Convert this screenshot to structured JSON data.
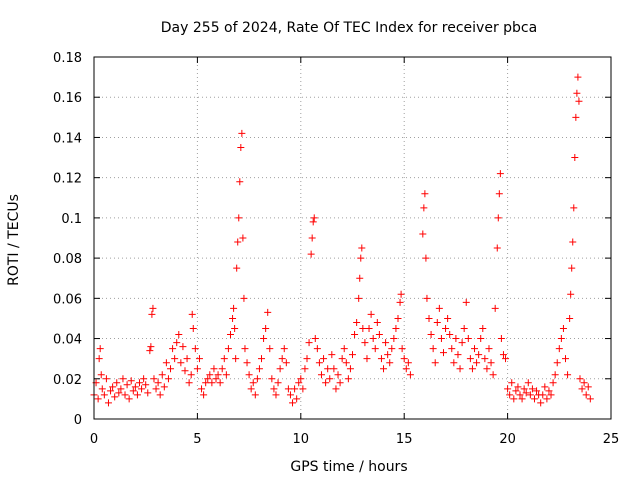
{
  "chart_data": {
    "type": "scatter",
    "title": "Day 255 of 2024, Rate Of TEC Index for receiver pbca",
    "xlabel": "GPS time / hours",
    "ylabel": "ROTI / TECUs",
    "xlim": [
      0,
      25
    ],
    "ylim": [
      0,
      0.18
    ],
    "xticks": [
      "0",
      "5",
      "10",
      "15",
      "20",
      "25"
    ],
    "yticks": [
      "0",
      "0.02",
      "0.04",
      "0.06",
      "0.08",
      "0.1",
      "0.12",
      "0.14",
      "0.16",
      "0.18"
    ],
    "grid": true,
    "marker": "+",
    "color": "#ff0000",
    "series": [
      {
        "points": [
          [
            0.0,
            0.012
          ],
          [
            0.1,
            0.018
          ],
          [
            0.2,
            0.01
          ],
          [
            0.25,
            0.03
          ],
          [
            0.3,
            0.035
          ],
          [
            0.35,
            0.022
          ],
          [
            0.4,
            0.015
          ],
          [
            0.5,
            0.012
          ],
          [
            0.6,
            0.02
          ],
          [
            0.7,
            0.008
          ],
          [
            0.8,
            0.014
          ],
          [
            0.9,
            0.016
          ],
          [
            1.0,
            0.011
          ],
          [
            1.1,
            0.018
          ],
          [
            1.2,
            0.013
          ],
          [
            1.3,
            0.015
          ],
          [
            1.4,
            0.02
          ],
          [
            1.5,
            0.012
          ],
          [
            1.6,
            0.017
          ],
          [
            1.7,
            0.01
          ],
          [
            1.8,
            0.019
          ],
          [
            1.9,
            0.014
          ],
          [
            2.0,
            0.016
          ],
          [
            2.1,
            0.012
          ],
          [
            2.2,
            0.018
          ],
          [
            2.3,
            0.015
          ],
          [
            2.4,
            0.02
          ],
          [
            2.5,
            0.017
          ],
          [
            2.6,
            0.013
          ],
          [
            2.7,
            0.034
          ],
          [
            2.75,
            0.036
          ],
          [
            2.8,
            0.052
          ],
          [
            2.85,
            0.055
          ],
          [
            2.9,
            0.02
          ],
          [
            3.0,
            0.015
          ],
          [
            3.1,
            0.018
          ],
          [
            3.2,
            0.012
          ],
          [
            3.3,
            0.022
          ],
          [
            3.4,
            0.016
          ],
          [
            3.5,
            0.028
          ],
          [
            3.6,
            0.02
          ],
          [
            3.7,
            0.025
          ],
          [
            3.8,
            0.035
          ],
          [
            3.9,
            0.03
          ],
          [
            4.0,
            0.038
          ],
          [
            4.1,
            0.042
          ],
          [
            4.2,
            0.028
          ],
          [
            4.3,
            0.036
          ],
          [
            4.4,
            0.024
          ],
          [
            4.5,
            0.03
          ],
          [
            4.6,
            0.018
          ],
          [
            4.7,
            0.022
          ],
          [
            4.75,
            0.052
          ],
          [
            4.8,
            0.045
          ],
          [
            4.9,
            0.035
          ],
          [
            5.0,
            0.025
          ],
          [
            5.1,
            0.03
          ],
          [
            5.2,
            0.015
          ],
          [
            5.3,
            0.012
          ],
          [
            5.4,
            0.018
          ],
          [
            5.5,
            0.02
          ],
          [
            5.6,
            0.022
          ],
          [
            5.7,
            0.018
          ],
          [
            5.8,
            0.025
          ],
          [
            5.9,
            0.02
          ],
          [
            6.0,
            0.022
          ],
          [
            6.1,
            0.018
          ],
          [
            6.2,
            0.025
          ],
          [
            6.3,
            0.03
          ],
          [
            6.4,
            0.022
          ],
          [
            6.5,
            0.035
          ],
          [
            6.6,
            0.042
          ],
          [
            6.7,
            0.05
          ],
          [
            6.75,
            0.055
          ],
          [
            6.8,
            0.045
          ],
          [
            6.85,
            0.03
          ],
          [
            6.9,
            0.075
          ],
          [
            6.95,
            0.088
          ],
          [
            7.0,
            0.1
          ],
          [
            7.05,
            0.118
          ],
          [
            7.1,
            0.135
          ],
          [
            7.15,
            0.142
          ],
          [
            7.2,
            0.09
          ],
          [
            7.25,
            0.06
          ],
          [
            7.3,
            0.035
          ],
          [
            7.4,
            0.028
          ],
          [
            7.5,
            0.022
          ],
          [
            7.6,
            0.015
          ],
          [
            7.7,
            0.018
          ],
          [
            7.8,
            0.012
          ],
          [
            7.9,
            0.02
          ],
          [
            8.0,
            0.025
          ],
          [
            8.1,
            0.03
          ],
          [
            8.2,
            0.04
          ],
          [
            8.3,
            0.045
          ],
          [
            8.4,
            0.053
          ],
          [
            8.5,
            0.035
          ],
          [
            8.6,
            0.02
          ],
          [
            8.7,
            0.015
          ],
          [
            8.8,
            0.012
          ],
          [
            8.9,
            0.018
          ],
          [
            9.0,
            0.025
          ],
          [
            9.1,
            0.03
          ],
          [
            9.2,
            0.035
          ],
          [
            9.3,
            0.028
          ],
          [
            9.4,
            0.015
          ],
          [
            9.5,
            0.012
          ],
          [
            9.6,
            0.008
          ],
          [
            9.7,
            0.015
          ],
          [
            9.8,
            0.01
          ],
          [
            9.9,
            0.018
          ],
          [
            10.0,
            0.02
          ],
          [
            10.1,
            0.015
          ],
          [
            10.2,
            0.025
          ],
          [
            10.3,
            0.03
          ],
          [
            10.4,
            0.038
          ],
          [
            10.5,
            0.082
          ],
          [
            10.55,
            0.09
          ],
          [
            10.6,
            0.098
          ],
          [
            10.65,
            0.1
          ],
          [
            10.7,
            0.04
          ],
          [
            10.8,
            0.035
          ],
          [
            10.9,
            0.028
          ],
          [
            11.0,
            0.022
          ],
          [
            11.1,
            0.03
          ],
          [
            11.2,
            0.018
          ],
          [
            11.3,
            0.025
          ],
          [
            11.4,
            0.02
          ],
          [
            11.5,
            0.032
          ],
          [
            11.6,
            0.025
          ],
          [
            11.7,
            0.015
          ],
          [
            11.8,
            0.022
          ],
          [
            11.9,
            0.018
          ],
          [
            12.0,
            0.03
          ],
          [
            12.1,
            0.035
          ],
          [
            12.2,
            0.028
          ],
          [
            12.3,
            0.02
          ],
          [
            12.4,
            0.025
          ],
          [
            12.5,
            0.032
          ],
          [
            12.6,
            0.042
          ],
          [
            12.7,
            0.048
          ],
          [
            12.8,
            0.06
          ],
          [
            12.85,
            0.07
          ],
          [
            12.9,
            0.08
          ],
          [
            12.95,
            0.085
          ],
          [
            13.0,
            0.045
          ],
          [
            13.1,
            0.038
          ],
          [
            13.2,
            0.03
          ],
          [
            13.3,
            0.045
          ],
          [
            13.4,
            0.052
          ],
          [
            13.5,
            0.04
          ],
          [
            13.6,
            0.035
          ],
          [
            13.7,
            0.048
          ],
          [
            13.8,
            0.042
          ],
          [
            13.9,
            0.03
          ],
          [
            14.0,
            0.025
          ],
          [
            14.1,
            0.038
          ],
          [
            14.2,
            0.032
          ],
          [
            14.3,
            0.028
          ],
          [
            14.4,
            0.035
          ],
          [
            14.5,
            0.04
          ],
          [
            14.6,
            0.045
          ],
          [
            14.7,
            0.05
          ],
          [
            14.8,
            0.058
          ],
          [
            14.85,
            0.062
          ],
          [
            14.9,
            0.035
          ],
          [
            15.0,
            0.03
          ],
          [
            15.1,
            0.025
          ],
          [
            15.2,
            0.028
          ],
          [
            15.3,
            0.022
          ],
          [
            15.9,
            0.092
          ],
          [
            15.95,
            0.105
          ],
          [
            16.0,
            0.112
          ],
          [
            16.05,
            0.08
          ],
          [
            16.1,
            0.06
          ],
          [
            16.2,
            0.05
          ],
          [
            16.3,
            0.042
          ],
          [
            16.4,
            0.035
          ],
          [
            16.5,
            0.028
          ],
          [
            16.6,
            0.048
          ],
          [
            16.7,
            0.055
          ],
          [
            16.8,
            0.04
          ],
          [
            16.9,
            0.033
          ],
          [
            17.0,
            0.045
          ],
          [
            17.1,
            0.05
          ],
          [
            17.2,
            0.042
          ],
          [
            17.3,
            0.035
          ],
          [
            17.4,
            0.028
          ],
          [
            17.5,
            0.04
          ],
          [
            17.6,
            0.032
          ],
          [
            17.7,
            0.025
          ],
          [
            17.8,
            0.038
          ],
          [
            17.9,
            0.045
          ],
          [
            18.0,
            0.058
          ],
          [
            18.1,
            0.04
          ],
          [
            18.2,
            0.03
          ],
          [
            18.3,
            0.025
          ],
          [
            18.4,
            0.035
          ],
          [
            18.5,
            0.028
          ],
          [
            18.6,
            0.032
          ],
          [
            18.7,
            0.04
          ],
          [
            18.8,
            0.045
          ],
          [
            18.9,
            0.03
          ],
          [
            19.0,
            0.025
          ],
          [
            19.1,
            0.035
          ],
          [
            19.2,
            0.028
          ],
          [
            19.3,
            0.022
          ],
          [
            19.4,
            0.055
          ],
          [
            19.5,
            0.085
          ],
          [
            19.55,
            0.1
          ],
          [
            19.6,
            0.112
          ],
          [
            19.65,
            0.122
          ],
          [
            19.7,
            0.04
          ],
          [
            19.8,
            0.032
          ],
          [
            19.9,
            0.03
          ],
          [
            20.0,
            0.015
          ],
          [
            20.1,
            0.012
          ],
          [
            20.2,
            0.018
          ],
          [
            20.3,
            0.01
          ],
          [
            20.4,
            0.014
          ],
          [
            20.5,
            0.016
          ],
          [
            20.6,
            0.012
          ],
          [
            20.7,
            0.01
          ],
          [
            20.8,
            0.015
          ],
          [
            20.9,
            0.013
          ],
          [
            21.0,
            0.018
          ],
          [
            21.1,
            0.012
          ],
          [
            21.2,
            0.015
          ],
          [
            21.3,
            0.01
          ],
          [
            21.4,
            0.014
          ],
          [
            21.5,
            0.012
          ],
          [
            21.6,
            0.008
          ],
          [
            21.7,
            0.012
          ],
          [
            21.8,
            0.016
          ],
          [
            21.9,
            0.01
          ],
          [
            22.0,
            0.014
          ],
          [
            22.1,
            0.012
          ],
          [
            22.2,
            0.018
          ],
          [
            22.3,
            0.022
          ],
          [
            22.4,
            0.028
          ],
          [
            22.5,
            0.035
          ],
          [
            22.6,
            0.04
          ],
          [
            22.7,
            0.045
          ],
          [
            22.8,
            0.03
          ],
          [
            22.9,
            0.022
          ],
          [
            23.0,
            0.05
          ],
          [
            23.05,
            0.062
          ],
          [
            23.1,
            0.075
          ],
          [
            23.15,
            0.088
          ],
          [
            23.2,
            0.105
          ],
          [
            23.25,
            0.13
          ],
          [
            23.3,
            0.15
          ],
          [
            23.35,
            0.162
          ],
          [
            23.4,
            0.17
          ],
          [
            23.45,
            0.158
          ],
          [
            23.5,
            0.02
          ],
          [
            23.6,
            0.015
          ],
          [
            23.7,
            0.018
          ],
          [
            23.8,
            0.012
          ],
          [
            23.9,
            0.016
          ],
          [
            24.0,
            0.01
          ]
        ]
      }
    ]
  }
}
